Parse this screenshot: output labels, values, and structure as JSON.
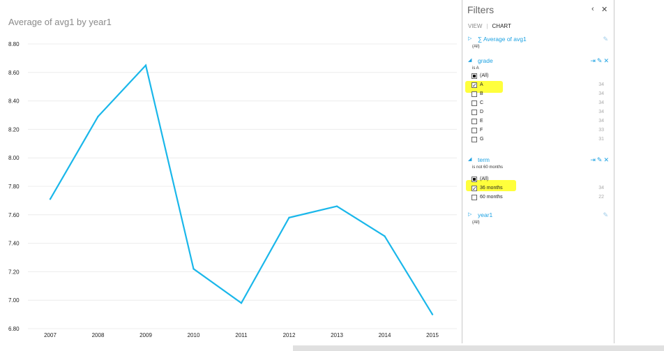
{
  "chart_data": {
    "type": "line",
    "title": "Average of avg1 by year1",
    "categories": [
      "2007",
      "2008",
      "2009",
      "2010",
      "2011",
      "2012",
      "2013",
      "2014",
      "2015"
    ],
    "values": [
      7.71,
      8.29,
      8.65,
      7.22,
      6.98,
      7.58,
      7.66,
      7.45,
      6.9
    ],
    "ylim": [
      6.8,
      8.8
    ],
    "yticks": [
      "8.80",
      "8.60",
      "8.40",
      "8.20",
      "8.00",
      "7.80",
      "7.60",
      "7.40",
      "7.20",
      "7.00",
      "6.80"
    ],
    "xlabel": "",
    "ylabel": "",
    "grid": true,
    "line_color": "#1ab7ea"
  },
  "filters": {
    "title": "Filters",
    "collapse_icon": "chevron-left-icon",
    "close_icon": "close-icon",
    "close_glyph": "✕",
    "collapse_glyph": "‹",
    "tabs": {
      "view": "VIEW",
      "separator": "|",
      "chart": "CHART"
    },
    "sections": {
      "avg1": {
        "label": "∑ Average of avg1",
        "sub": "(All)"
      },
      "grade": {
        "label": "grade",
        "sub": "is A",
        "options": [
          {
            "label": "(All)",
            "count": "",
            "state": "all"
          },
          {
            "label": "A",
            "count": "34",
            "state": "checked"
          },
          {
            "label": "B",
            "count": "34",
            "state": "unchecked"
          },
          {
            "label": "C",
            "count": "34",
            "state": "unchecked"
          },
          {
            "label": "D",
            "count": "34",
            "state": "unchecked"
          },
          {
            "label": "E",
            "count": "34",
            "state": "unchecked"
          },
          {
            "label": "F",
            "count": "33",
            "state": "unchecked"
          },
          {
            "label": "G",
            "count": "31",
            "state": "unchecked"
          }
        ]
      },
      "term": {
        "label": "term",
        "sub": "is not 60 months",
        "options": [
          {
            "label": "(All)",
            "count": "",
            "state": "all"
          },
          {
            "label": "36 months",
            "count": "34",
            "state": "checked"
          },
          {
            "label": "60 months",
            "count": "22",
            "state": "unchecked"
          }
        ]
      },
      "year1": {
        "label": "year1",
        "sub": "(All)"
      }
    },
    "highlight_color": "#ffff3c",
    "accent": "#1ba1e2"
  }
}
